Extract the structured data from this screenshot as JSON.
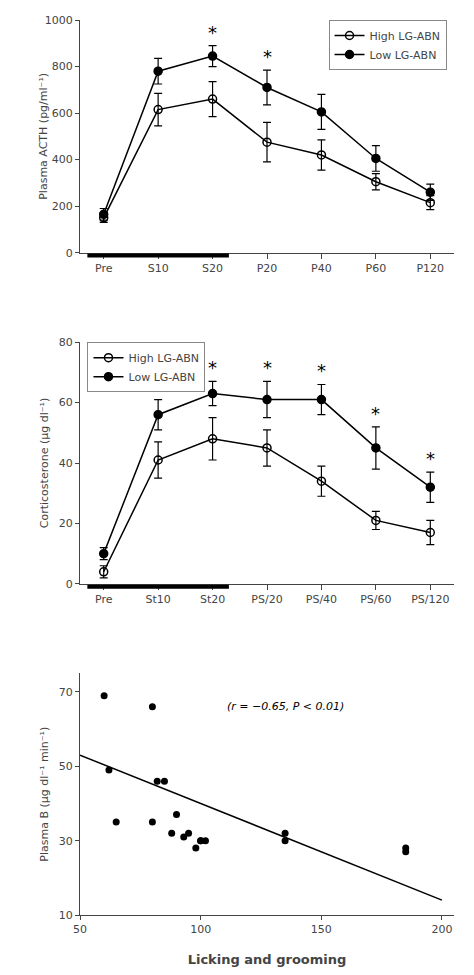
{
  "chart_data": [
    {
      "type": "line",
      "categories": [
        "Pre",
        "S10",
        "S20",
        "P20",
        "P40",
        "P60",
        "P120"
      ],
      "y_label": "Plasma ACTH (pg/ml⁻¹)",
      "ylim": [
        0,
        1000
      ],
      "yticks": [
        0,
        200,
        400,
        600,
        800,
        1000
      ],
      "grid": false,
      "legend": "upper right",
      "series": [
        {
          "name": "High LG-ABN",
          "color": "black",
          "marker": "circle-open",
          "values": [
            150,
            615,
            660,
            475,
            420,
            305,
            215
          ],
          "errors": [
            20,
            70,
            75,
            85,
            65,
            35,
            30
          ]
        },
        {
          "name": "Low LG-ABN",
          "color": "black",
          "marker": "circle",
          "values": [
            165,
            780,
            845,
            710,
            605,
            405,
            260
          ],
          "errors": [
            25,
            55,
            45,
            75,
            75,
            55,
            35
          ]
        }
      ],
      "annotations": [
        {
          "text": "*",
          "x": "S20",
          "series": "Low LG-ABN"
        },
        {
          "text": "*",
          "x": "P20",
          "series": "Low LG-ABN"
        }
      ],
      "stress_bar": [
        "Pre",
        "S20"
      ]
    },
    {
      "type": "line",
      "categories": [
        "Pre",
        "St10",
        "St20",
        "PS/20",
        "PS/40",
        "PS/60",
        "PS/120"
      ],
      "y_label": "Corticosterone (µg dl⁻¹)",
      "ylim": [
        0,
        80
      ],
      "yticks": [
        0,
        20,
        40,
        60,
        80
      ],
      "grid": false,
      "legend": "upper left",
      "series": [
        {
          "name": "High LG-ABN",
          "color": "black",
          "marker": "circle-open",
          "values": [
            4,
            41,
            48,
            45,
            34,
            21,
            17
          ],
          "errors": [
            2,
            6,
            7,
            6,
            5,
            3,
            4
          ]
        },
        {
          "name": "Low LG-ABN",
          "color": "black",
          "marker": "circle",
          "values": [
            10,
            56,
            63,
            61,
            61,
            45,
            32
          ],
          "errors": [
            2,
            5,
            4,
            6,
            5,
            7,
            5
          ]
        }
      ],
      "annotations": [
        {
          "text": "*",
          "x": "St20",
          "series": "Low LG-ABN"
        },
        {
          "text": "*",
          "x": "PS/20",
          "series": "Low LG-ABN"
        },
        {
          "text": "*",
          "x": "PS/40",
          "series": "Low LG-ABN"
        },
        {
          "text": "*",
          "x": "PS/60",
          "series": "Low LG-ABN"
        },
        {
          "text": "*",
          "x": "PS/120",
          "series": "Low LG-ABN"
        }
      ],
      "stress_bar": [
        "Pre",
        "St20"
      ]
    },
    {
      "type": "scatter",
      "x_label": "Licking and grooming",
      "y_label": "Plasma B (µg dl⁻¹ min⁻¹)",
      "xlim": [
        50,
        205
      ],
      "ylim": [
        10,
        75
      ],
      "xticks": [
        50,
        100,
        150,
        200
      ],
      "yticks": [
        10,
        30,
        50,
        70
      ],
      "grid": false,
      "series": [
        {
          "type": "scatter",
          "color": "black",
          "x": [
            60,
            62,
            65,
            80,
            80,
            82,
            85,
            88,
            90,
            93,
            95,
            98,
            100,
            100,
            102,
            135,
            135,
            185,
            185
          ],
          "values": [
            69,
            49,
            35,
            66,
            35,
            46,
            46,
            32,
            37,
            31,
            32,
            28,
            30,
            30,
            30,
            32,
            30,
            28,
            27
          ]
        },
        {
          "type": "line",
          "color": "black",
          "x": [
            50,
            200
          ],
          "values": [
            53,
            14
          ]
        }
      ],
      "annotations": [
        {
          "text": "(r = −0.65, P < 0.01)"
        }
      ]
    }
  ]
}
